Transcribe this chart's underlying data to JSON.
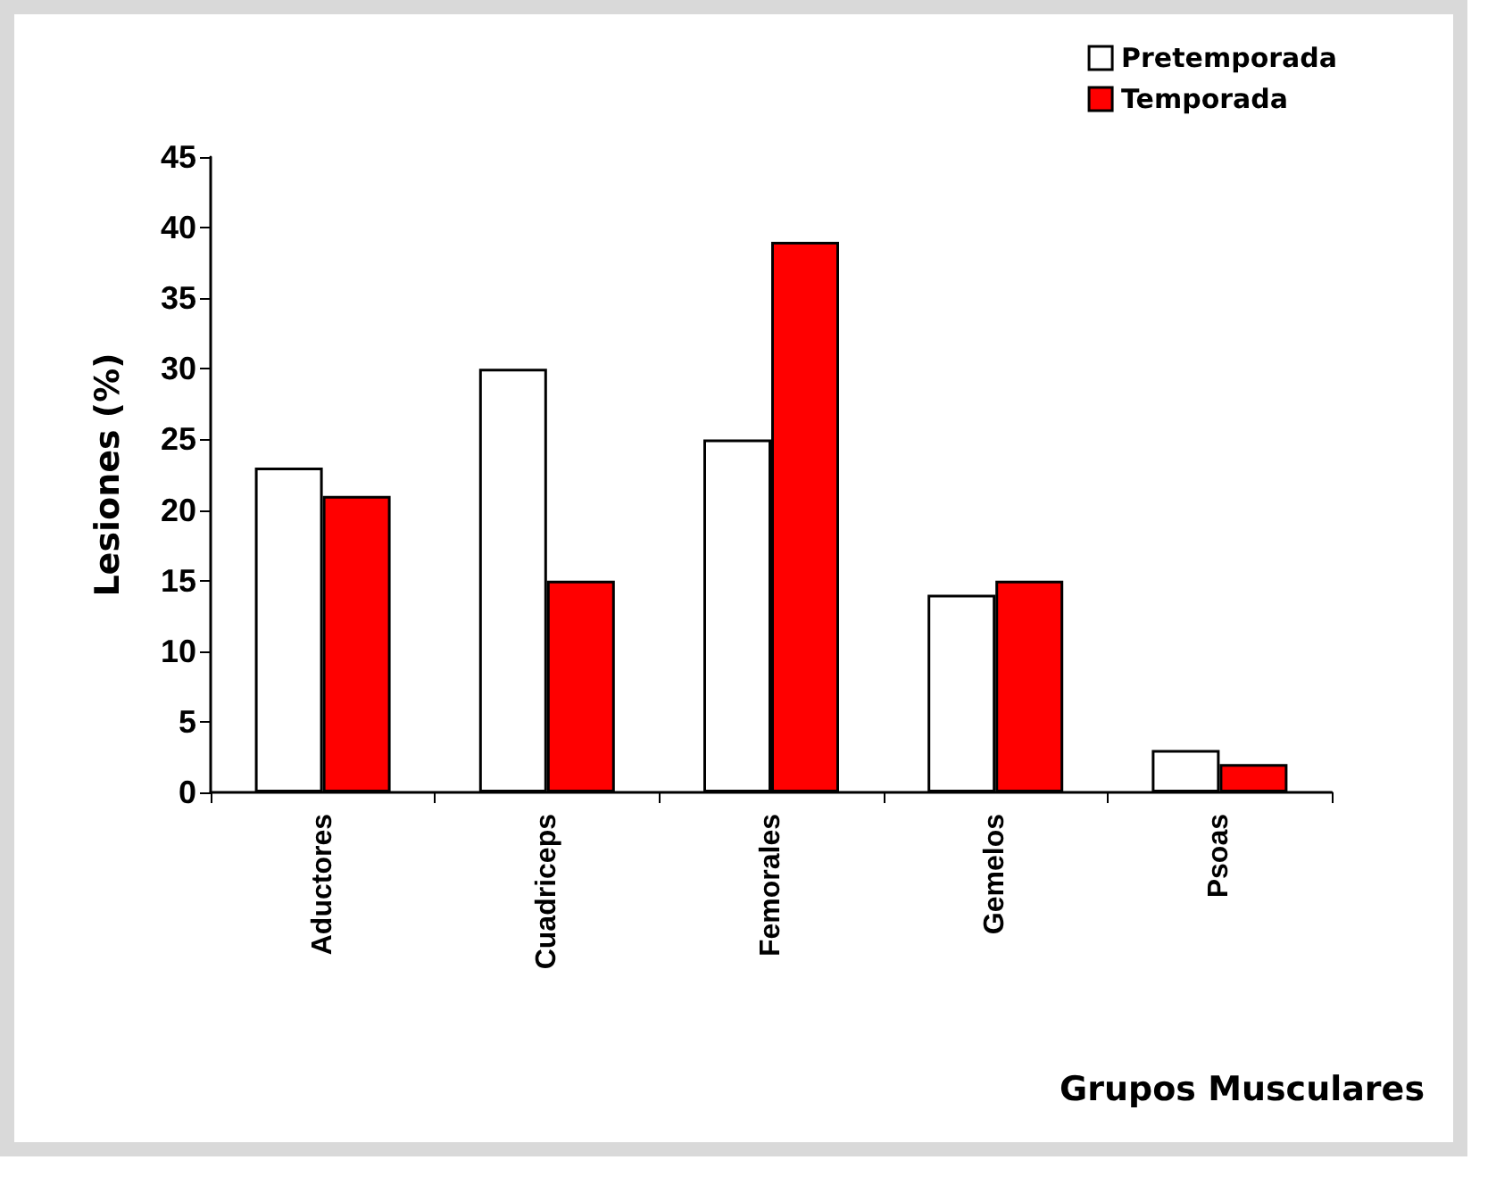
{
  "chart_data": {
    "type": "bar",
    "xlabel": "Grupos Musculares",
    "ylabel": "Lesiones (%)",
    "categories": [
      "Aductores",
      "Cuadriceps",
      "Femorales",
      "Gemelos",
      "Psoas"
    ],
    "series": [
      {
        "name": "Pretemporada",
        "color": "#ffffff",
        "values": [
          23,
          30,
          25,
          14,
          3
        ]
      },
      {
        "name": "Temporada",
        "color": "#ff0000",
        "values": [
          21,
          15,
          39,
          15,
          2
        ]
      }
    ],
    "ylim": [
      0,
      45
    ],
    "yticks": [
      0,
      5,
      10,
      15,
      20,
      25,
      30,
      35,
      40,
      45
    ],
    "grid": false,
    "legend": "top right"
  }
}
